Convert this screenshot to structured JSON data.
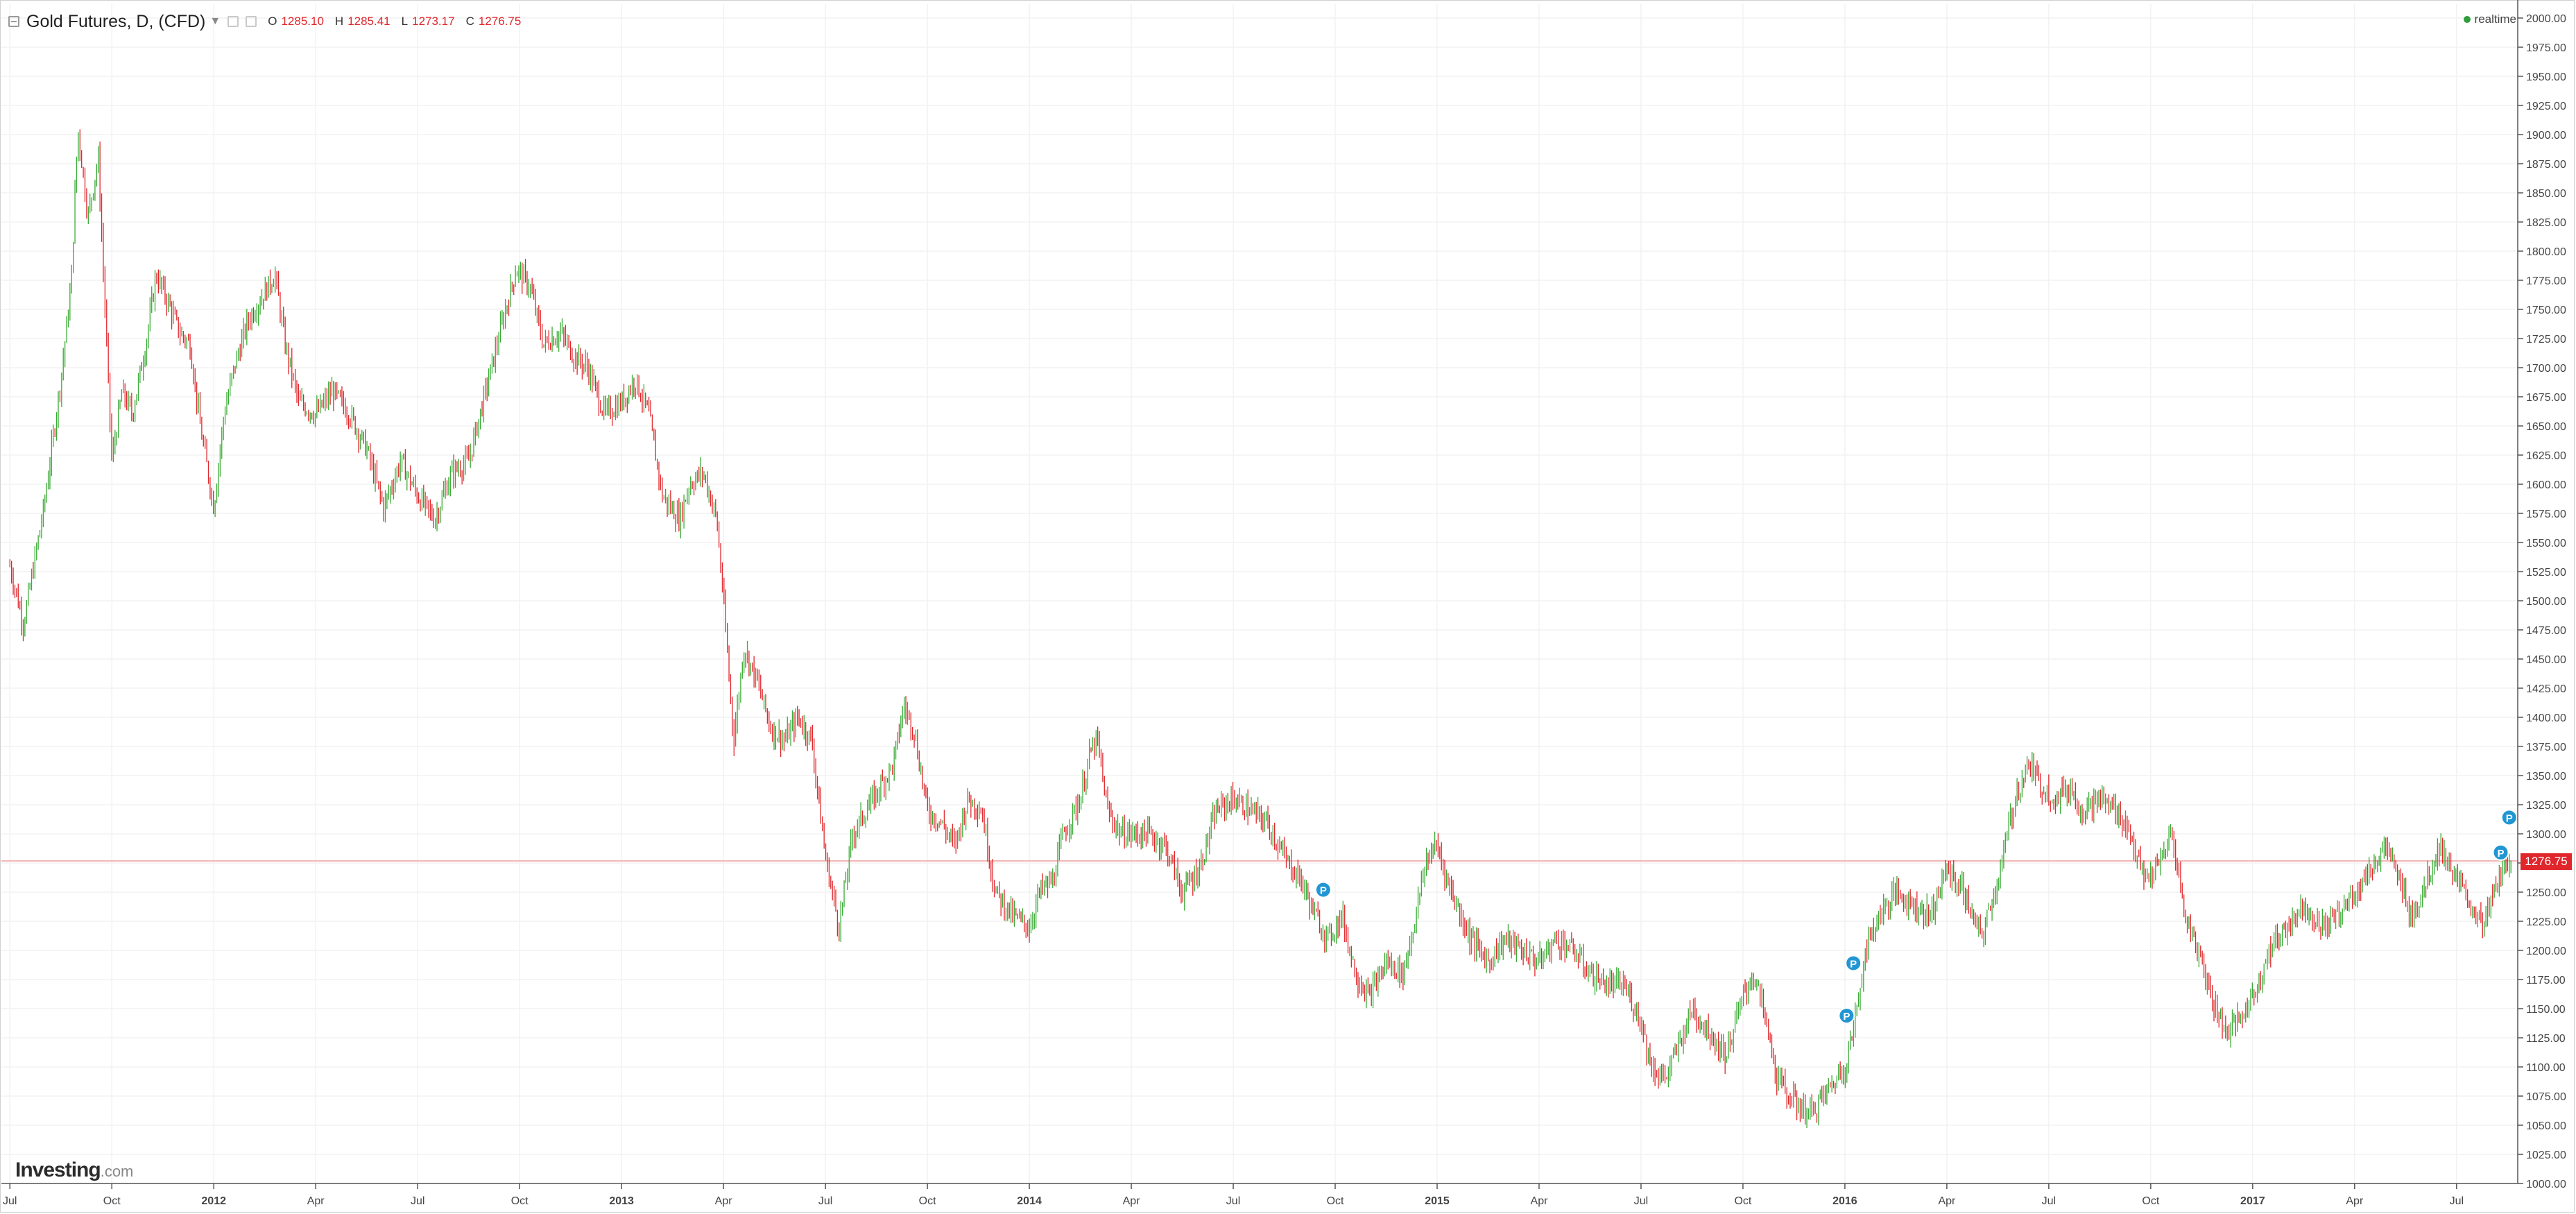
{
  "header": {
    "title": "Gold Futures, D, (CFD)",
    "ohlc": [
      {
        "key": "O",
        "value": "1285.10"
      },
      {
        "key": "H",
        "value": "1285.41"
      },
      {
        "key": "L",
        "value": "1273.17"
      },
      {
        "key": "C",
        "value": "1276.75"
      }
    ],
    "status": "realtime"
  },
  "logo": {
    "name": "Investing",
    "suffix": ".com"
  },
  "last_price": "1276.75",
  "colors": {
    "up": "#3aaa35",
    "down": "#e0262b",
    "last_price_line": "#f3b6b6",
    "grid": "#f2f2f2",
    "marker": "#2196d3"
  },
  "chart_data": {
    "type": "candlestick",
    "title": "Gold Futures, D, (CFD)",
    "ylim": [
      1000,
      2000
    ],
    "y_ticks": [
      "1000.00",
      "1025.00",
      "1050.00",
      "1075.00",
      "1100.00",
      "1125.00",
      "1150.00",
      "1175.00",
      "1200.00",
      "1225.00",
      "1250.00",
      "1275.00",
      "1300.00",
      "1325.00",
      "1350.00",
      "1375.00",
      "1400.00",
      "1425.00",
      "1450.00",
      "1475.00",
      "1500.00",
      "1525.00",
      "1550.00",
      "1575.00",
      "1600.00",
      "1625.00",
      "1650.00",
      "1675.00",
      "1700.00",
      "1725.00",
      "1750.00",
      "1775.00",
      "1800.00",
      "1825.00",
      "1850.00",
      "1875.00",
      "1900.00",
      "1925.00",
      "1950.00",
      "1975.00",
      "2000.00"
    ],
    "x_ticks": [
      {
        "label": "Jul",
        "t": 0,
        "bold": false
      },
      {
        "label": "Oct",
        "t": 3,
        "bold": false
      },
      {
        "label": "2012",
        "t": 6,
        "bold": true
      },
      {
        "label": "Apr",
        "t": 9,
        "bold": false
      },
      {
        "label": "Jul",
        "t": 12,
        "bold": false
      },
      {
        "label": "Oct",
        "t": 15,
        "bold": false
      },
      {
        "label": "2013",
        "t": 18,
        "bold": true
      },
      {
        "label": "Apr",
        "t": 21,
        "bold": false
      },
      {
        "label": "Jul",
        "t": 24,
        "bold": false
      },
      {
        "label": "Oct",
        "t": 27,
        "bold": false
      },
      {
        "label": "2014",
        "t": 30,
        "bold": true
      },
      {
        "label": "Apr",
        "t": 33,
        "bold": false
      },
      {
        "label": "Jul",
        "t": 36,
        "bold": false
      },
      {
        "label": "Oct",
        "t": 39,
        "bold": false
      },
      {
        "label": "2015",
        "t": 42,
        "bold": true
      },
      {
        "label": "Apr",
        "t": 45,
        "bold": false
      },
      {
        "label": "Jul",
        "t": 48,
        "bold": false
      },
      {
        "label": "Oct",
        "t": 51,
        "bold": false
      },
      {
        "label": "2016",
        "t": 54,
        "bold": true
      },
      {
        "label": "Apr",
        "t": 57,
        "bold": false
      },
      {
        "label": "Jul",
        "t": 60,
        "bold": false
      },
      {
        "label": "Oct",
        "t": 63,
        "bold": false
      },
      {
        "label": "2017",
        "t": 66,
        "bold": true
      },
      {
        "label": "Apr",
        "t": 69,
        "bold": false
      },
      {
        "label": "Jul",
        "t": 72,
        "bold": false
      }
    ],
    "x_range": [
      -0.25,
      73.8
    ],
    "price_path": [
      [
        0,
        1530
      ],
      [
        0.4,
        1480
      ],
      [
        1,
        1580
      ],
      [
        1.5,
        1690
      ],
      [
        1.8,
        1770
      ],
      [
        2.0,
        1905
      ],
      [
        2.3,
        1830
      ],
      [
        2.6,
        1880
      ],
      [
        3.0,
        1620
      ],
      [
        3.3,
        1680
      ],
      [
        3.6,
        1660
      ],
      [
        4.0,
        1720
      ],
      [
        4.3,
        1780
      ],
      [
        4.6,
        1760
      ],
      [
        5.0,
        1730
      ],
      [
        5.3,
        1720
      ],
      [
        5.6,
        1650
      ],
      [
        6.0,
        1580
      ],
      [
        6.3,
        1660
      ],
      [
        6.6,
        1700
      ],
      [
        7.0,
        1740
      ],
      [
        7.4,
        1760
      ],
      [
        7.8,
        1780
      ],
      [
        8.1,
        1720
      ],
      [
        8.5,
        1670
      ],
      [
        9.0,
        1660
      ],
      [
        9.5,
        1680
      ],
      [
        10.0,
        1660
      ],
      [
        10.5,
        1630
      ],
      [
        11.0,
        1580
      ],
      [
        11.5,
        1620
      ],
      [
        12.0,
        1590
      ],
      [
        12.5,
        1570
      ],
      [
        13.0,
        1610
      ],
      [
        13.5,
        1620
      ],
      [
        14.0,
        1680
      ],
      [
        14.5,
        1740
      ],
      [
        14.9,
        1785
      ],
      [
        15.3,
        1770
      ],
      [
        15.7,
        1720
      ],
      [
        16.2,
        1730
      ],
      [
        16.6,
        1710
      ],
      [
        17.0,
        1700
      ],
      [
        17.5,
        1660
      ],
      [
        18.0,
        1670
      ],
      [
        18.4,
        1690
      ],
      [
        18.8,
        1660
      ],
      [
        19.2,
        1590
      ],
      [
        19.7,
        1570
      ],
      [
        20.0,
        1600
      ],
      [
        20.4,
        1610
      ],
      [
        20.8,
        1570
      ],
      [
        21.0,
        1500
      ],
      [
        21.3,
        1380
      ],
      [
        21.6,
        1460
      ],
      [
        22.0,
        1430
      ],
      [
        22.4,
        1390
      ],
      [
        22.8,
        1380
      ],
      [
        23.2,
        1400
      ],
      [
        23.6,
        1380
      ],
      [
        24.0,
        1280
      ],
      [
        24.4,
        1220
      ],
      [
        24.8,
        1300
      ],
      [
        25.2,
        1320
      ],
      [
        25.6,
        1340
      ],
      [
        26.0,
        1360
      ],
      [
        26.3,
        1410
      ],
      [
        26.6,
        1390
      ],
      [
        27.0,
        1320
      ],
      [
        27.4,
        1310
      ],
      [
        27.8,
        1290
      ],
      [
        28.2,
        1330
      ],
      [
        28.6,
        1320
      ],
      [
        29.0,
        1250
      ],
      [
        29.5,
        1230
      ],
      [
        30.0,
        1220
      ],
      [
        30.3,
        1250
      ],
      [
        30.7,
        1260
      ],
      [
        31.0,
        1300
      ],
      [
        31.5,
        1330
      ],
      [
        31.8,
        1370
      ],
      [
        32.0,
        1380
      ],
      [
        32.3,
        1320
      ],
      [
        32.7,
        1300
      ],
      [
        33.0,
        1300
      ],
      [
        33.5,
        1300
      ],
      [
        34.0,
        1290
      ],
      [
        34.5,
        1250
      ],
      [
        35.0,
        1270
      ],
      [
        35.5,
        1320
      ],
      [
        36.0,
        1330
      ],
      [
        36.5,
        1320
      ],
      [
        37.0,
        1310
      ],
      [
        37.5,
        1280
      ],
      [
        38.0,
        1260
      ],
      [
        38.4,
        1230
      ],
      [
        38.8,
        1210
      ],
      [
        39.2,
        1230
      ],
      [
        39.6,
        1180
      ],
      [
        40.0,
        1160
      ],
      [
        40.5,
        1190
      ],
      [
        41.0,
        1180
      ],
      [
        41.3,
        1220
      ],
      [
        41.7,
        1280
      ],
      [
        42.0,
        1290
      ],
      [
        42.3,
        1260
      ],
      [
        42.7,
        1230
      ],
      [
        43.0,
        1210
      ],
      [
        43.5,
        1190
      ],
      [
        44.0,
        1210
      ],
      [
        44.5,
        1200
      ],
      [
        45.0,
        1190
      ],
      [
        45.5,
        1210
      ],
      [
        46.0,
        1200
      ],
      [
        46.5,
        1180
      ],
      [
        47.0,
        1170
      ],
      [
        47.5,
        1170
      ],
      [
        48.0,
        1140
      ],
      [
        48.3,
        1100
      ],
      [
        48.7,
        1090
      ],
      [
        49.0,
        1110
      ],
      [
        49.5,
        1150
      ],
      [
        50.0,
        1130
      ],
      [
        50.5,
        1110
      ],
      [
        51.0,
        1160
      ],
      [
        51.3,
        1180
      ],
      [
        51.6,
        1150
      ],
      [
        52.0,
        1090
      ],
      [
        52.5,
        1070
      ],
      [
        53.0,
        1060
      ],
      [
        53.5,
        1080
      ],
      [
        54.0,
        1100
      ],
      [
        54.3,
        1140
      ],
      [
        54.6,
        1200
      ],
      [
        55.0,
        1230
      ],
      [
        55.5,
        1250
      ],
      [
        56.0,
        1240
      ],
      [
        56.5,
        1230
      ],
      [
        57.0,
        1270
      ],
      [
        57.5,
        1250
      ],
      [
        58.0,
        1210
      ],
      [
        58.5,
        1260
      ],
      [
        59.0,
        1330
      ],
      [
        59.4,
        1360
      ],
      [
        59.8,
        1340
      ],
      [
        60.2,
        1330
      ],
      [
        60.6,
        1340
      ],
      [
        61.0,
        1320
      ],
      [
        61.5,
        1330
      ],
      [
        62.0,
        1320
      ],
      [
        62.4,
        1300
      ],
      [
        62.8,
        1260
      ],
      [
        63.2,
        1270
      ],
      [
        63.6,
        1300
      ],
      [
        63.8,
        1270
      ],
      [
        64.0,
        1230
      ],
      [
        64.4,
        1200
      ],
      [
        64.8,
        1160
      ],
      [
        65.2,
        1130
      ],
      [
        65.6,
        1140
      ],
      [
        66.0,
        1160
      ],
      [
        66.5,
        1200
      ],
      [
        67.0,
        1220
      ],
      [
        67.5,
        1240
      ],
      [
        68.0,
        1220
      ],
      [
        68.5,
        1230
      ],
      [
        69.0,
        1250
      ],
      [
        69.5,
        1270
      ],
      [
        69.9,
        1290
      ],
      [
        70.3,
        1260
      ],
      [
        70.7,
        1230
      ],
      [
        71.0,
        1250
      ],
      [
        71.5,
        1290
      ],
      [
        72.0,
        1260
      ],
      [
        72.4,
        1240
      ],
      [
        72.8,
        1220
      ],
      [
        73.2,
        1260
      ],
      [
        73.6,
        1280
      ]
    ],
    "markers": [
      {
        "label": "P",
        "t": 38.65,
        "y": 1252
      },
      {
        "label": "P",
        "t": 54.05,
        "y": 1144
      },
      {
        "label": "P",
        "t": 54.25,
        "y": 1189
      },
      {
        "label": "P",
        "t": 73.3,
        "y": 1284
      },
      {
        "label": "P",
        "t": 73.55,
        "y": 1314
      }
    ],
    "last_price": 1276.75,
    "grid": true
  }
}
